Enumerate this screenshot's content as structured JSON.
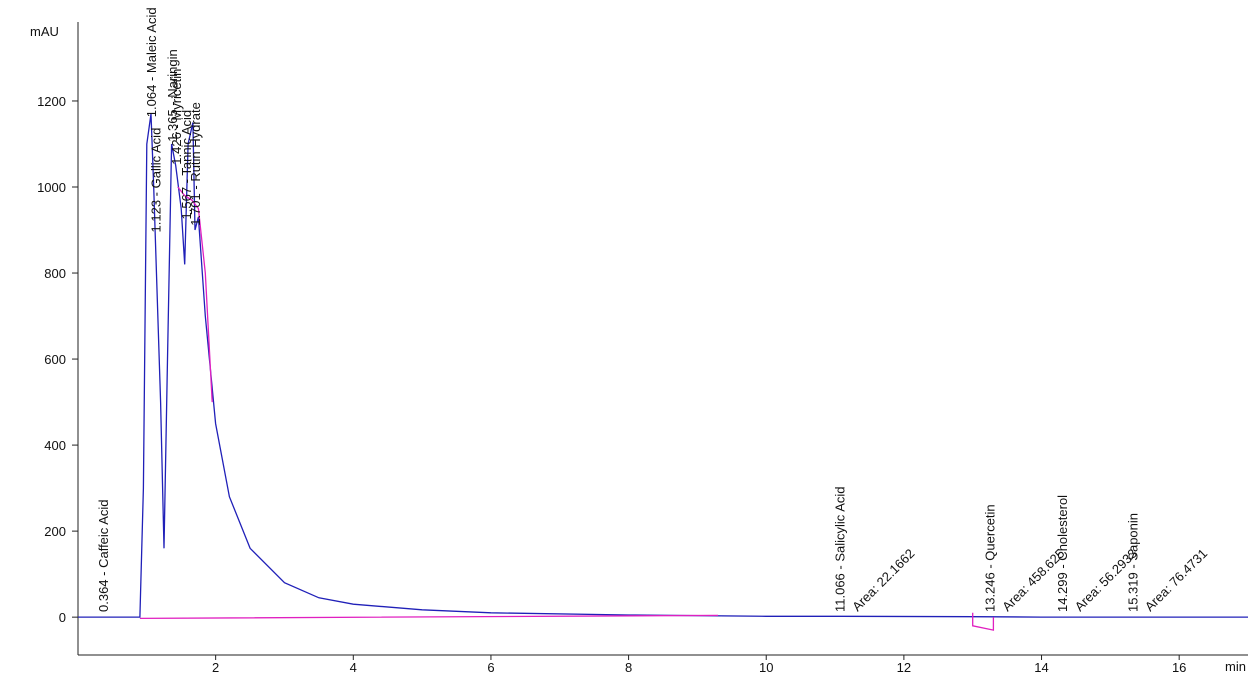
{
  "chart_data": {
    "type": "line",
    "y_label": "mAU",
    "x_label": "min",
    "xlim": [
      0,
      17
    ],
    "ylim": [
      -88,
      1365
    ],
    "xticks": [
      2,
      4,
      6,
      8,
      10,
      12,
      14,
      16
    ],
    "yticks": [
      0,
      200,
      400,
      600,
      800,
      1000,
      1200
    ],
    "series": [
      {
        "color": "#2020b8",
        "x": [
          0,
          0.9,
          0.95,
          1.0,
          1.06,
          1.1,
          1.2,
          1.25,
          1.3,
          1.36,
          1.42,
          1.5,
          1.55,
          1.6,
          1.67,
          1.7,
          1.75,
          1.85,
          2.0,
          2.2,
          2.5,
          3.0,
          3.5,
          4.0,
          5.0,
          6.0,
          8.0,
          10.0,
          11.066,
          13.0,
          14.0,
          17.0
        ],
        "values": [
          0,
          0,
          300,
          1100,
          1170,
          1000,
          500,
          160,
          600,
          1100,
          1050,
          950,
          820,
          1100,
          1150,
          900,
          930,
          700,
          450,
          280,
          160,
          80,
          45,
          30,
          17,
          10,
          5,
          2,
          2,
          1,
          0,
          0
        ]
      },
      {
        "color": "#e020c0",
        "x": [
          0.9,
          9.3,
          null,
          13.0,
          13.0,
          13.3,
          13.3,
          null,
          1.45,
          1.55,
          1.65,
          1.75,
          1.85,
          1.95
        ],
        "values": [
          -3,
          4,
          null,
          10,
          -20,
          -30,
          0,
          null,
          1000,
          980,
          970,
          950,
          800,
          500
        ]
      }
    ],
    "peak_labels": [
      {
        "x": 0.364,
        "text": "0.364 -  Caffeic Acid"
      },
      {
        "x": 1.064,
        "text": "1.064 - Maleic Acid"
      },
      {
        "x": 1.123,
        "text": "1.123 - Gallic Acid"
      },
      {
        "x": 1.365,
        "text": "1.365 - Naringin"
      },
      {
        "x": 1.426,
        "text": "1.426 - Myricetin"
      },
      {
        "x": 1.567,
        "text": "1.567 - Tannic Acid"
      },
      {
        "x": 1.701,
        "text": "1.701 - Rutin Hydrate"
      },
      {
        "x": 11.066,
        "text": "11.066 -  Salicylic Acid"
      },
      {
        "x": 13.246,
        "text": "13.246 -  Quercetin"
      },
      {
        "x": 14.299,
        "text": "14.299 - Cholesterol"
      },
      {
        "x": 15.319,
        "text": "15.319 - Saponin"
      }
    ],
    "area_labels": [
      {
        "x": 11.066,
        "text": "Area: 22.1662"
      },
      {
        "x": 13.246,
        "text": "Area: 458.625"
      },
      {
        "x": 14.299,
        "text": "Area: 56.2933"
      },
      {
        "x": 15.319,
        "text": "Area: 76.4731"
      }
    ]
  }
}
